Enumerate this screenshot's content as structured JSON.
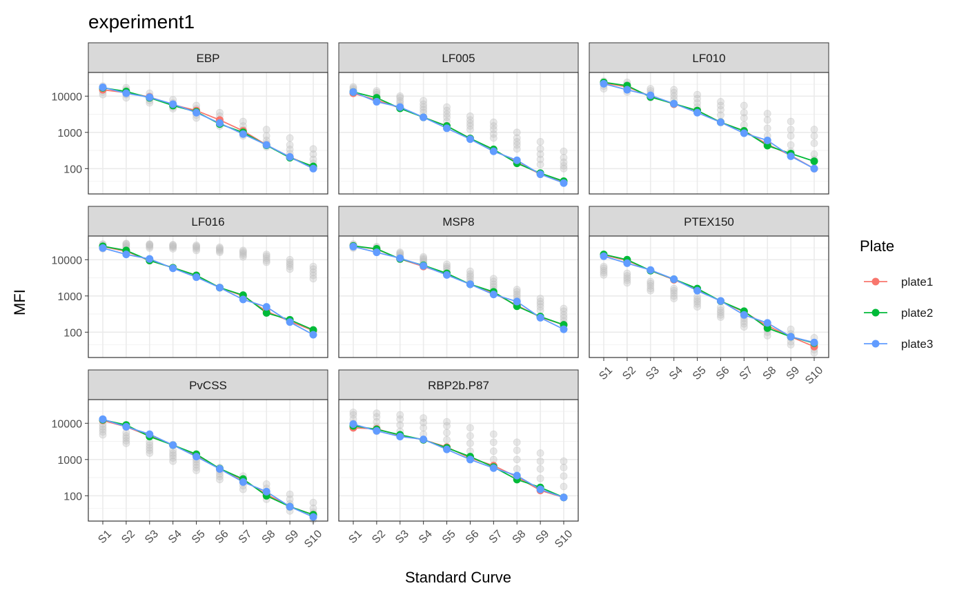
{
  "chart_data": {
    "type": "line",
    "title": "experiment1",
    "xlabel": "Standard Curve",
    "ylabel": "MFI",
    "y_scale": "log10",
    "ylim": [
      20,
      45000
    ],
    "y_ticks": [
      100,
      1000,
      10000
    ],
    "y_tick_labels": [
      "100",
      "1000",
      "10000"
    ],
    "categories": [
      "S1",
      "S2",
      "S3",
      "S4",
      "S5",
      "S6",
      "S7",
      "S8",
      "S9",
      "S10"
    ],
    "grid": true,
    "legend": {
      "title": "Plate",
      "position": "right",
      "entries": [
        {
          "name": "plate1",
          "color": "#F8766D"
        },
        {
          "name": "plate2",
          "color": "#00BA38"
        },
        {
          "name": "plate3",
          "color": "#619CFF"
        }
      ]
    },
    "background_points_color": "#BEBEBE",
    "panels": [
      {
        "name": "EBP",
        "series": [
          {
            "name": "plate1",
            "values": [
              15000,
              12500,
              9500,
              5800,
              4000,
              2200,
              1100,
              450,
              210,
              110
            ]
          },
          {
            "name": "plate2",
            "values": [
              17000,
              13500,
              9000,
              5500,
              3700,
              1700,
              1000,
              440,
              200,
              115
            ]
          },
          {
            "name": "plate3",
            "values": [
              17500,
              12000,
              9300,
              6000,
              3500,
              1800,
              900,
              450,
              210,
              100
            ]
          }
        ],
        "background": [
          [
            11000,
            13000,
            15000,
            17000,
            19000
          ],
          [
            9000,
            11000,
            13000,
            15000,
            17000
          ],
          [
            6500,
            7500,
            8500,
            10000,
            12000
          ],
          [
            4500,
            5000,
            5500,
            6500,
            8000
          ],
          [
            2500,
            3000,
            3500,
            4500,
            5500
          ],
          [
            1500,
            1800,
            2200,
            2800,
            3500
          ],
          [
            800,
            1000,
            1200,
            1500,
            2000
          ],
          [
            400,
            500,
            600,
            800,
            1200
          ],
          [
            200,
            260,
            340,
            450,
            700
          ],
          [
            110,
            140,
            180,
            250,
            350
          ]
        ]
      },
      {
        "name": "LF005",
        "series": [
          {
            "name": "plate1",
            "values": [
              12000,
              7800,
              4700,
              2600,
              1500,
              680,
              330,
              150,
              70,
              43
            ]
          },
          {
            "name": "plate2",
            "values": [
              13000,
              9000,
              4600,
              2600,
              1500,
              680,
              340,
              140,
              75,
              45
            ]
          },
          {
            "name": "plate3",
            "values": [
              13000,
              7000,
              5000,
              2600,
              1300,
              650,
              300,
              170,
              70,
              40
            ]
          }
        ],
        "background": [
          [
            12000,
            13500,
            15000,
            16500,
            18000
          ],
          [
            8000,
            9500,
            11000,
            12500,
            14000
          ],
          [
            5500,
            6500,
            7500,
            9000,
            10000
          ],
          [
            3500,
            4200,
            5000,
            6000,
            7500
          ],
          [
            2000,
            2600,
            3200,
            4000,
            5000
          ],
          [
            1200,
            1500,
            1800,
            2200,
            2800
          ],
          [
            700,
            900,
            1200,
            1500,
            1900
          ],
          [
            350,
            450,
            550,
            700,
            1000
          ],
          [
            130,
            180,
            250,
            350,
            550
          ],
          [
            100,
            120,
            150,
            200,
            300
          ]
        ]
      },
      {
        "name": "LF010",
        "series": [
          {
            "name": "plate1",
            "values": [
              23000,
              18000,
              10000,
              6000,
              4000,
              1900,
              1100,
              470,
              230,
              100
            ]
          },
          {
            "name": "plate2",
            "values": [
              24000,
              19500,
              9500,
              6200,
              4000,
              1900,
              1100,
              430,
              260,
              160
            ]
          },
          {
            "name": "plate3",
            "values": [
              22000,
              15000,
              10500,
              6200,
              3500,
              1900,
              950,
              600,
              220,
              100
            ]
          }
        ],
        "background": [
          [
            16000,
            19000,
            22000,
            24000,
            26000
          ],
          [
            13000,
            15000,
            18000,
            21000,
            24000
          ],
          [
            9000,
            10500,
            12000,
            14000,
            16000
          ],
          [
            6000,
            8000,
            10000,
            12500,
            15000
          ],
          [
            3500,
            5000,
            6500,
            8500,
            11000
          ],
          [
            2000,
            3000,
            4200,
            5500,
            7000
          ],
          [
            1000,
            1600,
            2500,
            3500,
            5500
          ],
          [
            500,
            800,
            1300,
            2200,
            3300
          ],
          [
            300,
            450,
            800,
            1200,
            2000
          ],
          [
            180,
            250,
            500,
            800,
            1200
          ]
        ]
      },
      {
        "name": "LF016",
        "series": [
          {
            "name": "plate1",
            "values": [
              23000,
              17000,
              9500,
              6000,
              3700,
              1700,
              1000,
              380,
              200,
              110
            ]
          },
          {
            "name": "plate2",
            "values": [
              23500,
              18000,
              9500,
              6000,
              3700,
              1700,
              1050,
              340,
              220,
              115
            ]
          },
          {
            "name": "plate3",
            "values": [
              21000,
              14000,
              10500,
              5800,
              3300,
              1700,
              800,
              500,
              190,
              85
            ]
          }
        ],
        "background": [
          [
            20000,
            22000,
            24000,
            26000,
            27000
          ],
          [
            21000,
            23000,
            25000,
            27000,
            28000
          ],
          [
            21000,
            23000,
            25000,
            26000,
            27000
          ],
          [
            20000,
            22000,
            23500,
            25000,
            26000
          ],
          [
            18000,
            20000,
            22000,
            23500,
            25000
          ],
          [
            16000,
            17500,
            19000,
            20500,
            22000
          ],
          [
            12000,
            13500,
            15000,
            16500,
            18000
          ],
          [
            8500,
            9500,
            11000,
            12500,
            14000
          ],
          [
            5500,
            6500,
            7500,
            8500,
            10000
          ],
          [
            3000,
            3700,
            4500,
            5500,
            6500
          ]
        ]
      },
      {
        "name": "MSP8",
        "series": [
          {
            "name": "plate1",
            "values": [
              24000,
              19500,
              10500,
              6500,
              4000,
              2100,
              1200,
              550,
              260,
              160
            ]
          },
          {
            "name": "plate2",
            "values": [
              24000,
              20000,
              10500,
              7000,
              4200,
              2100,
              1300,
              520,
              270,
              160
            ]
          },
          {
            "name": "plate3",
            "values": [
              23000,
              16000,
              11000,
              6800,
              3800,
              2100,
              1100,
              700,
              250,
              120
            ]
          }
        ],
        "background": [
          [
            21000,
            22500,
            24000,
            25500,
            27000
          ],
          [
            17000,
            18500,
            20000,
            21500,
            23000
          ],
          [
            12000,
            13000,
            14000,
            15000,
            16000
          ],
          [
            8000,
            9000,
            10000,
            11000,
            12000
          ],
          [
            4500,
            5000,
            5800,
            6500,
            7500
          ],
          [
            2500,
            3000,
            3500,
            4000,
            4800
          ],
          [
            1500,
            1800,
            2100,
            2500,
            3000
          ],
          [
            800,
            950,
            1100,
            1300,
            1500
          ],
          [
            400,
            500,
            600,
            700,
            850
          ],
          [
            200,
            250,
            300,
            380,
            450
          ]
        ]
      },
      {
        "name": "PTEX150",
        "series": [
          {
            "name": "plate1",
            "values": [
              13500,
              9500,
              5000,
              2800,
              1500,
              720,
              360,
              150,
              75,
              40
            ]
          },
          {
            "name": "plate2",
            "values": [
              14000,
              10000,
              5000,
              2900,
              1600,
              720,
              380,
              130,
              75,
              50
            ]
          },
          {
            "name": "plate3",
            "values": [
              12500,
              8000,
              5200,
              2900,
              1400,
              730,
              300,
              180,
              75,
              52
            ]
          }
        ],
        "background": [
          [
            3800,
            4400,
            5000,
            5800,
            6500
          ],
          [
            2300,
            2700,
            3100,
            3600,
            4200
          ],
          [
            1400,
            1600,
            1900,
            2200,
            2500
          ],
          [
            850,
            1000,
            1200,
            1400,
            1600
          ],
          [
            500,
            600,
            700,
            800,
            950
          ],
          [
            260,
            300,
            350,
            400,
            480
          ],
          [
            140,
            170,
            200,
            240,
            280
          ],
          [
            80,
            100,
            120,
            150,
            180
          ],
          [
            45,
            55,
            70,
            90,
            120
          ],
          [
            27,
            33,
            40,
            50,
            70
          ]
        ]
      },
      {
        "name": "PvCSS",
        "series": [
          {
            "name": "plate1",
            "values": [
              12000,
              8000,
              4500,
              2500,
              1300,
              550,
              270,
              110,
              50,
              30
            ]
          },
          {
            "name": "plate2",
            "values": [
              12500,
              9000,
              4300,
              2500,
              1400,
              560,
              290,
              100,
              50,
              30
            ]
          },
          {
            "name": "plate3",
            "values": [
              13000,
              8000,
              5000,
              2500,
              1200,
              550,
              240,
              130,
              50,
              26
            ]
          }
        ],
        "background": [
          [
            4800,
            5800,
            6800,
            8000,
            9500
          ],
          [
            2800,
            3300,
            3900,
            4500,
            5500
          ],
          [
            1500,
            1800,
            2100,
            2500,
            3000
          ],
          [
            900,
            1100,
            1300,
            1500,
            1800
          ],
          [
            500,
            600,
            720,
            850,
            1000
          ],
          [
            280,
            340,
            400,
            480,
            600
          ],
          [
            150,
            190,
            230,
            280,
            350
          ],
          [
            80,
            100,
            130,
            160,
            210
          ],
          [
            38,
            48,
            60,
            80,
            110
          ],
          [
            22,
            28,
            35,
            45,
            65
          ]
        ]
      },
      {
        "name": "RBP2b.P87",
        "series": [
          {
            "name": "plate1",
            "values": [
              7500,
              7000,
              4600,
              3500,
              2200,
              1100,
              680,
              330,
              140,
              90
            ]
          },
          {
            "name": "plate2",
            "values": [
              8500,
              6800,
              4800,
              3500,
              2100,
              1200,
              620,
              280,
              170,
              90
            ]
          },
          {
            "name": "plate3",
            "values": [
              9500,
              6200,
              4300,
              3600,
              1900,
              1000,
              580,
              360,
              150,
              90
            ]
          }
        ],
        "background": [
          [
            7500,
            10000,
            13000,
            17000,
            20000
          ],
          [
            6000,
            8000,
            11000,
            15000,
            19000
          ],
          [
            4500,
            6000,
            9000,
            13000,
            17000
          ],
          [
            3500,
            5000,
            7500,
            10500,
            14000
          ],
          [
            2000,
            3500,
            5500,
            8500,
            11000
          ],
          [
            1000,
            1700,
            2800,
            4500,
            7500
          ],
          [
            600,
            1000,
            1700,
            3000,
            5000
          ],
          [
            300,
            550,
            1000,
            1800,
            3000
          ],
          [
            150,
            300,
            550,
            900,
            1500
          ],
          [
            90,
            180,
            350,
            600,
            900
          ]
        ]
      }
    ]
  }
}
